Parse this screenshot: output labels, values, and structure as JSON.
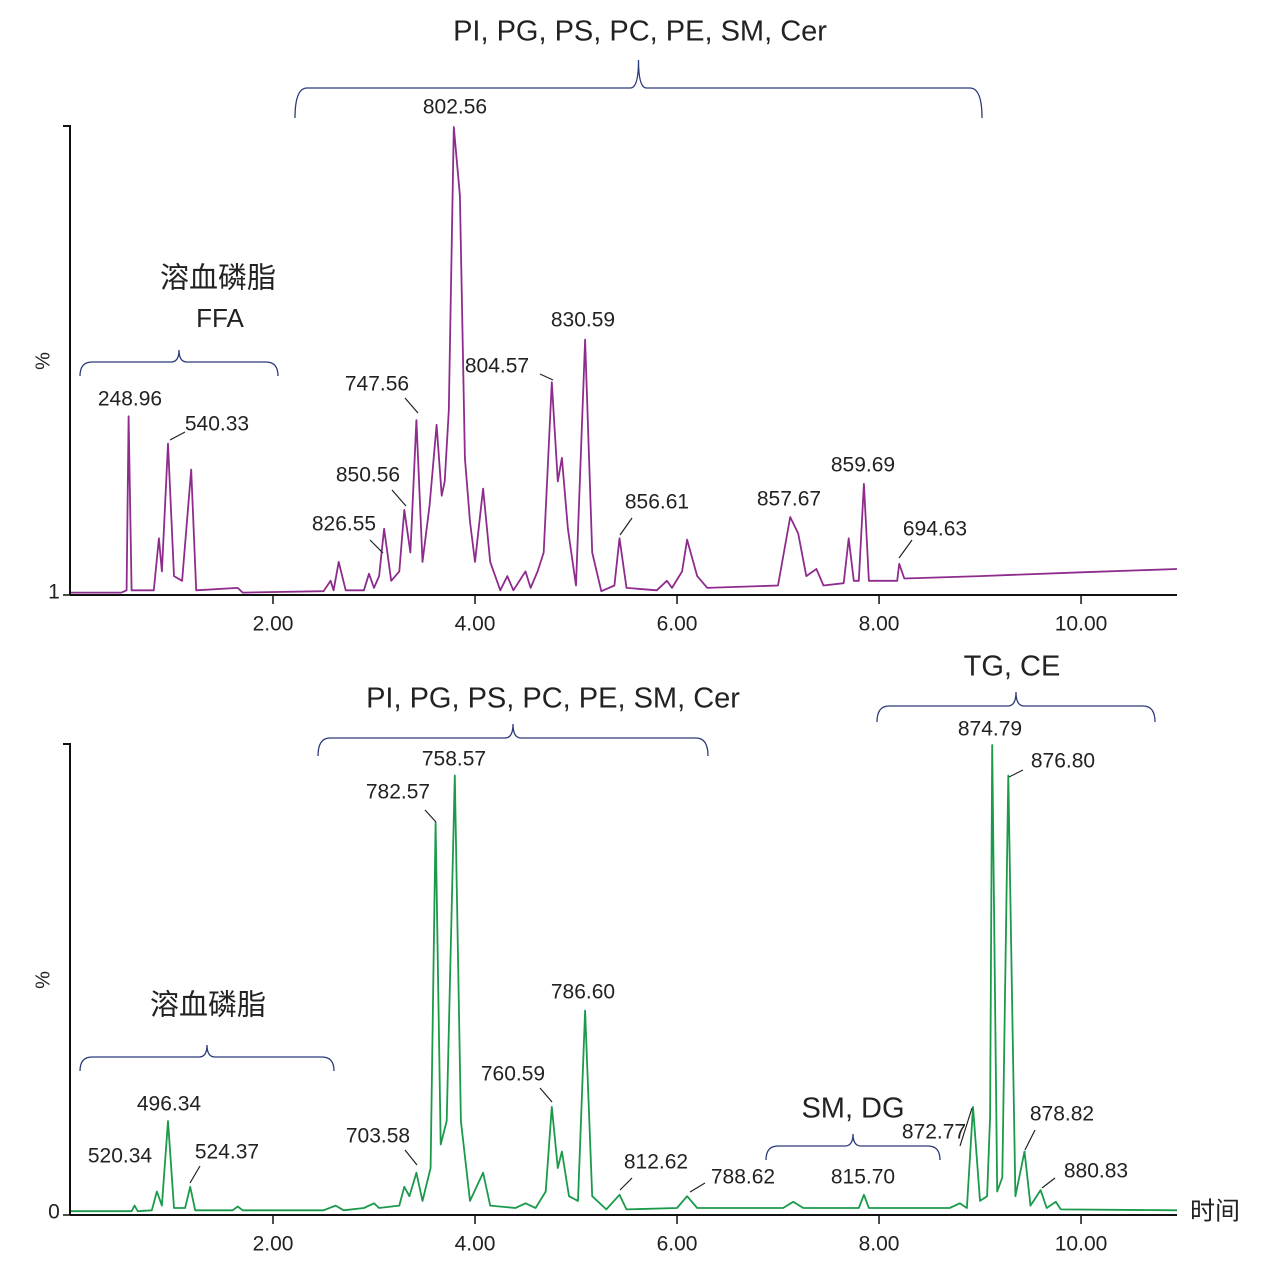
{
  "chart_data": [
    {
      "type": "line",
      "y_label": "%",
      "color": "#8e2c8e",
      "xlim": [
        0,
        10.95
      ],
      "ylim": [
        1,
        100
      ],
      "xticks": [
        {
          "value": 2,
          "label": "2.00"
        },
        {
          "value": 4,
          "label": "4.00"
        },
        {
          "value": 6,
          "label": "6.00"
        },
        {
          "value": 8,
          "label": "8.00"
        },
        {
          "value": 10,
          "label": "10.00"
        }
      ],
      "yticks": [
        1
      ],
      "x": [
        0,
        0.5,
        0.55,
        0.57,
        0.6,
        0.82,
        0.87,
        0.9,
        0.96,
        1.02,
        1.1,
        1.19,
        1.24,
        1.65,
        1.7,
        2.5,
        2.57,
        2.6,
        2.65,
        2.72,
        2.9,
        2.95,
        3.0,
        3.05,
        3.1,
        3.17,
        3.25,
        3.3,
        3.36,
        3.42,
        3.48,
        3.55,
        3.62,
        3.67,
        3.7,
        3.74,
        3.79,
        3.85,
        3.9,
        3.95,
        4.0,
        4.08,
        4.15,
        4.25,
        4.32,
        4.38,
        4.5,
        4.55,
        4.62,
        4.68,
        4.76,
        4.82,
        4.86,
        4.92,
        5.0,
        5.09,
        5.16,
        5.25,
        5.38,
        5.43,
        5.5,
        5.8,
        5.9,
        5.95,
        6.05,
        6.1,
        6.2,
        6.3,
        7.0,
        7.12,
        7.2,
        7.28,
        7.38,
        7.45,
        7.65,
        7.7,
        7.75,
        7.8,
        7.85,
        7.9,
        8.18,
        8.2,
        8.25,
        9.0,
        10.0,
        10.95
      ],
      "values": [
        1.5,
        1.5,
        2,
        38.8,
        2,
        2,
        13,
        6,
        33,
        5,
        4,
        27.5,
        2,
        2.5,
        1.5,
        1.8,
        4,
        2,
        8,
        2,
        2,
        5.5,
        2.5,
        5,
        15,
        4,
        6,
        19,
        10,
        38,
        8,
        20,
        37,
        22,
        25,
        40,
        100,
        85.5,
        30,
        16.5,
        8,
        23.5,
        8,
        2,
        5,
        2,
        6,
        2.5,
        6,
        10,
        46,
        25,
        30,
        15,
        3,
        55,
        10,
        1.8,
        3,
        13,
        2.5,
        2,
        4,
        2.5,
        6,
        12.7,
        5,
        2.5,
        3,
        17.5,
        14,
        5,
        6.5,
        3,
        3.5,
        13,
        4,
        4,
        24.5,
        4,
        4,
        7.6,
        4.5,
        5,
        5.8,
        6.5
      ],
      "annotations": [
        "248.96",
        "540.33",
        "747.56",
        "850.56",
        "826.55",
        "802.56",
        "804.57",
        "830.59",
        "856.61",
        "857.67",
        "859.69",
        "694.63"
      ],
      "groups": [
        {
          "label": "PI, PG, PS, PC, PE, SM, Cer"
        },
        {
          "label": "溶血磷脂",
          "sublabel": "FFA"
        }
      ]
    },
    {
      "type": "line",
      "y_label": "%",
      "x_label": "时间",
      "color": "#1a9a4a",
      "xlim": [
        0,
        10.95
      ],
      "ylim": [
        0,
        100
      ],
      "xticks": [
        {
          "value": 2,
          "label": "2.00"
        },
        {
          "value": 4,
          "label": "4.00"
        },
        {
          "value": 6,
          "label": "6.00"
        },
        {
          "value": 8,
          "label": "8.00"
        },
        {
          "value": 10,
          "label": "10.00"
        }
      ],
      "yticks": [
        0
      ],
      "x": [
        0,
        0.6,
        0.63,
        0.66,
        0.8,
        0.85,
        0.9,
        0.96,
        1.02,
        1.13,
        1.18,
        1.23,
        1.6,
        1.65,
        1.7,
        2.5,
        2.62,
        2.7,
        2.9,
        3.0,
        3.05,
        3.25,
        3.3,
        3.35,
        3.42,
        3.48,
        3.56,
        3.61,
        3.66,
        3.72,
        3.8,
        3.86,
        3.95,
        4.08,
        4.15,
        4.4,
        4.5,
        4.6,
        4.7,
        4.76,
        4.82,
        4.86,
        4.93,
        5.02,
        5.09,
        5.16,
        5.3,
        5.43,
        5.5,
        6.0,
        6.1,
        6.2,
        7.05,
        7.15,
        7.25,
        7.8,
        7.85,
        7.9,
        8.7,
        8.8,
        8.87,
        8.93,
        9.0,
        9.07,
        9.1,
        9.12,
        9.17,
        9.22,
        9.28,
        9.35,
        9.44,
        9.5,
        9.6,
        9.66,
        9.75,
        9.8,
        10.95
      ],
      "values": [
        0.8,
        0.8,
        2,
        0.8,
        1,
        5,
        2,
        20,
        1.5,
        1.5,
        6,
        1,
        1,
        1.8,
        1,
        1,
        2,
        1,
        1.5,
        2.5,
        1.5,
        2,
        6,
        4,
        9,
        3,
        10,
        83.5,
        15,
        20,
        93.5,
        20,
        3,
        9,
        2,
        1.5,
        2.5,
        1.5,
        5,
        23,
        10,
        13.5,
        4,
        3,
        43.5,
        4,
        1.2,
        4.3,
        1.2,
        1.5,
        4,
        1.5,
        1.5,
        2.8,
        1.5,
        1.5,
        4.3,
        1.5,
        1.5,
        2.5,
        1.5,
        23,
        3,
        4,
        21,
        100,
        5,
        8,
        93.5,
        4,
        13.5,
        2,
        5.3,
        1.5,
        2.8,
        1.2,
        1
      ],
      "annotations": [
        "520.34",
        "496.34",
        "524.37",
        "703.58",
        "782.57",
        "758.57",
        "760.59",
        "786.60",
        "812.62",
        "788.62",
        "815.70",
        "872.77",
        "874.79",
        "876.80",
        "878.82",
        "880.83"
      ],
      "groups": [
        {
          "label": "PI, PG, PS, PC, PE, SM, Cer"
        },
        {
          "label": "TG, CE"
        },
        {
          "label": "溶血磷脂"
        },
        {
          "label": "SM, DG"
        }
      ]
    }
  ]
}
